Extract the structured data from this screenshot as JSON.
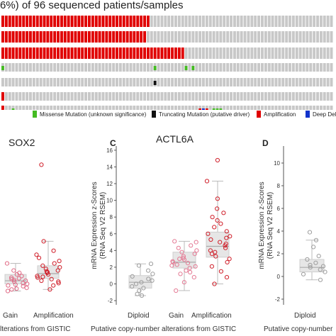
{
  "header": {
    "text": "6%) of 96 sequenced patients/samples"
  },
  "oncoprint": {
    "colors": {
      "background": "#c8c8c8",
      "amplification": "#e00000",
      "missense": "#44bb22",
      "truncating": "#111111",
      "deep_deletion": "#1133cc"
    }
  },
  "legend": {
    "items": [
      {
        "label": "Missense Mutation (unknown significance)",
        "color": "#44bb22"
      },
      {
        "label": "Truncating Mutation (putative driver)",
        "color": "#111111"
      },
      {
        "label": "Amplification",
        "color": "#e00000"
      },
      {
        "label": "Deep Delet",
        "color": "#1133cc"
      }
    ]
  },
  "panels": {
    "left": {
      "title": "SOX2",
      "xtick_labels": [
        "Gain",
        "Amplification"
      ],
      "xlabel": "lterations from GISTIC"
    },
    "center": {
      "letter": "C",
      "title": "ACTL6A",
      "ylabel_line1": "mRNA Expression z-Scores",
      "ylabel_line2": "(RNA Seq V2 RSEM)",
      "ytick_labels": [
        "-2",
        "0",
        "2",
        "4",
        "6",
        "8",
        "10",
        "12",
        "14",
        "16"
      ],
      "xtick_labels": [
        "Diploid",
        "Gain",
        "Amplification"
      ],
      "xlabel": "Putative copy-number alterations from GISTIC"
    },
    "right": {
      "letter": "D",
      "ylabel_line1": "mRNA Expression z-Scores",
      "ylabel_line2": "(RNA Seq V2 RSEM)",
      "ytick_labels": [
        "-2",
        "0",
        "2",
        "4",
        "6",
        "8",
        "10"
      ],
      "xtick_labels": [
        "Diploid"
      ],
      "xlabel": "Putative copy-number"
    }
  },
  "chart_data": [
    {
      "type": "scatter",
      "title": "SOX2",
      "categories": [
        "Gain",
        "Amplification"
      ],
      "series": [
        {
          "name": "Gain",
          "color": "#e06a85",
          "box": {
            "q1": -0.3,
            "median": 0.1,
            "q3": 0.9,
            "whisker_low": -1.2,
            "whisker_high": 2.3
          },
          "values": [
            -1.2,
            -1.0,
            -0.9,
            -0.8,
            -0.6,
            -0.5,
            -0.3,
            -0.2,
            0.0,
            0.1,
            0.2,
            0.4,
            0.5,
            0.7,
            0.9,
            1.1,
            1.4,
            2.3,
            0.3,
            -0.4
          ]
        },
        {
          "name": "Amplification",
          "color": "#d01f2a",
          "box": {
            "q1": 0.4,
            "median": 1.0,
            "q3": 2.0,
            "whisker_low": -1.0,
            "whisker_high": 5.1
          },
          "values": [
            -1.0,
            -0.5,
            -0.2,
            0.1,
            0.3,
            0.5,
            0.7,
            0.9,
            1.1,
            1.2,
            1.4,
            1.6,
            1.8,
            2.0,
            2.3,
            2.6,
            3.0,
            3.4,
            3.9,
            5.1,
            14.8,
            0.0,
            0.6,
            1.3
          ]
        }
      ]
    },
    {
      "type": "scatter",
      "title": "ACTL6A",
      "categories": [
        "Diploid",
        "Gain",
        "Amplification"
      ],
      "ylim": [
        -2.5,
        17
      ],
      "series": [
        {
          "name": "Diploid",
          "color": "#9e9e9e",
          "box": {
            "q1": -0.5,
            "median": 0.2,
            "q3": 1.0,
            "whisker_low": -1.4,
            "whisker_high": 2.4
          },
          "values": [
            -1.4,
            -1.2,
            -0.8,
            -0.5,
            -0.3,
            0.0,
            0.2,
            0.4,
            0.6,
            0.9,
            1.2,
            1.6,
            2.2,
            2.4
          ]
        },
        {
          "name": "Gain",
          "color": "#e47a94",
          "box": {
            "q1": 1.9,
            "median": 2.6,
            "q3": 3.8,
            "whisker_low": -0.8,
            "whisker_high": 5.1
          },
          "values": [
            -0.8,
            0.2,
            0.8,
            1.2,
            1.6,
            1.9,
            2.1,
            2.3,
            2.5,
            2.6,
            2.7,
            2.9,
            3.1,
            3.3,
            3.6,
            3.8,
            4.0,
            4.3,
            4.6,
            5.0,
            5.1,
            2.2,
            1.4,
            3.0
          ]
        },
        {
          "name": "Amplification",
          "color": "#d01f2a",
          "box": {
            "q1": 3.2,
            "median": 4.5,
            "q3": 6.2,
            "whisker_low": 0.0,
            "whisker_high": 12.3
          },
          "values": [
            0.0,
            0.8,
            1.5,
            2.1,
            2.6,
            3.0,
            3.3,
            3.6,
            4.0,
            4.3,
            4.6,
            5.0,
            5.3,
            5.7,
            6.0,
            6.3,
            6.8,
            7.2,
            7.6,
            8.0,
            8.5,
            9.0,
            10.2,
            12.3,
            14.8,
            4.8,
            3.8,
            5.5
          ]
        }
      ]
    },
    {
      "type": "scatter",
      "categories": [
        "Diploid"
      ],
      "ylim": [
        -2.5,
        11.5
      ],
      "series": [
        {
          "name": "Diploid",
          "color": "#9e9e9e",
          "box": {
            "q1": 0.4,
            "median": 0.8,
            "q3": 1.5,
            "whisker_low": -0.3,
            "whisker_high": 3.2
          },
          "values": [
            -0.3,
            0.2,
            0.4,
            0.6,
            0.8,
            0.9,
            1.0,
            1.2,
            1.5,
            1.8,
            2.6,
            3.2,
            3.9
          ]
        }
      ]
    }
  ]
}
